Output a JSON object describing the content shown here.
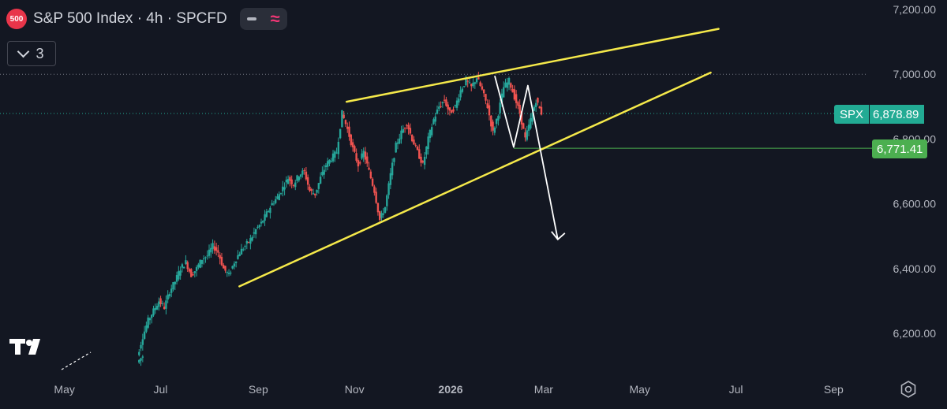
{
  "header": {
    "logo_text": "500",
    "title": "S&P 500 Index · 4h · SPCFD",
    "wave_symbol": "≈",
    "collapse_count": "3"
  },
  "colors": {
    "background": "#131722",
    "up": "#26a69a",
    "down": "#ef5350",
    "trendline": "#f5e94a",
    "projection": "#ffffff",
    "price_tag": "#22ab94",
    "level_tag": "#4caf50"
  },
  "price_tags": {
    "symbol": "SPX",
    "last_price": "6,878.89",
    "level": "6,771.41"
  },
  "chart_data": {
    "type": "candlestick",
    "interval": "4h",
    "x_tick_labels": [
      "May",
      "Jul",
      "Sep",
      "Nov",
      "2026",
      "Mar",
      "May",
      "Jul",
      "Sep"
    ],
    "y_tick_labels": [
      "7,200.00",
      "7,000.00",
      "6,800.00",
      "6,600.00",
      "6,400.00",
      "6,200.00"
    ],
    "y_ticks": [
      7200,
      7000,
      6800,
      6600,
      6400,
      6200
    ],
    "ylim": [
      6100,
      7235
    ],
    "last_price": 6878.89,
    "horizontal_level": 6771.41,
    "dotted_reference_level": 7000,
    "approx_closes": [
      6130,
      6190,
      6240,
      6270,
      6300,
      6280,
      6330,
      6360,
      6400,
      6420,
      6380,
      6400,
      6430,
      6440,
      6470,
      6450,
      6400,
      6380,
      6420,
      6450,
      6470,
      6490,
      6520,
      6540,
      6570,
      6600,
      6620,
      6650,
      6680,
      6660,
      6690,
      6700,
      6640,
      6630,
      6680,
      6720,
      6740,
      6760,
      6880,
      6830,
      6770,
      6720,
      6760,
      6700,
      6640,
      6550,
      6590,
      6690,
      6780,
      6820,
      6850,
      6800,
      6760,
      6720,
      6800,
      6860,
      6900,
      6920,
      6880,
      6900,
      6950,
      6980,
      6960,
      6990,
      6950,
      6900,
      6820,
      6880,
      6960,
      6980,
      6930,
      6880,
      6800,
      6860,
      6920,
      6880
    ],
    "trendlines": [
      {
        "name": "upper",
        "from": [
          "2025-10-27",
          6915
        ],
        "to": [
          "2026-06-20",
          7140
        ]
      },
      {
        "name": "lower",
        "from": [
          "2025-08-20",
          6345
        ],
        "to": [
          "2026-06-15",
          7005
        ]
      }
    ],
    "projection_path": [
      [
        "2026-01-29",
        6995
      ],
      [
        "2026-02-10",
        6775
      ],
      [
        "2026-02-19",
        6965
      ],
      [
        "2026-03-10",
        6490
      ]
    ]
  }
}
